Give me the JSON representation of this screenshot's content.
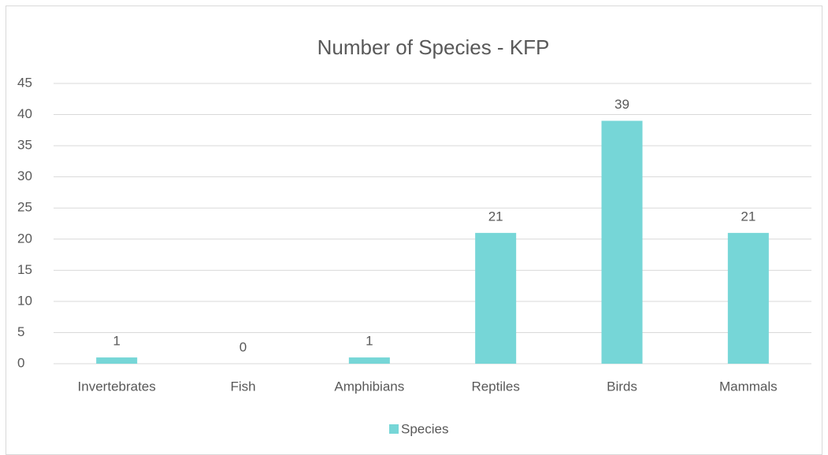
{
  "chart_data": {
    "type": "bar",
    "title": "Number of Species - KFP",
    "categories": [
      "Invertebrates",
      "Fish",
      "Amphibians",
      "Reptiles",
      "Birds",
      "Mammals"
    ],
    "series": [
      {
        "name": "Species",
        "color": "#76d6d7",
        "values": [
          1,
          0,
          1,
          21,
          39,
          21
        ]
      }
    ],
    "ylim": [
      0,
      45
    ],
    "yticks": [
      0,
      5,
      10,
      15,
      20,
      25,
      30,
      35,
      40,
      45
    ],
    "grid": true,
    "legend": "bottom"
  }
}
